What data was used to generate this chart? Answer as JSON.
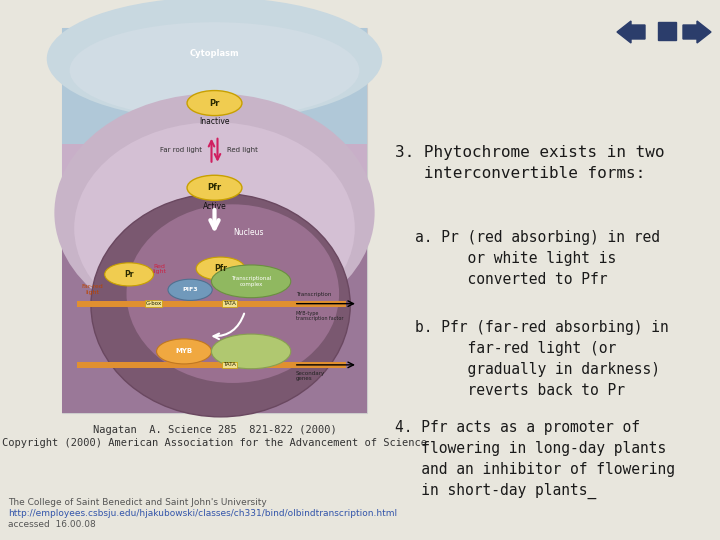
{
  "bg_color": "#e8e6dd",
  "text_color": "#1a1a1a",
  "arrow_nav_color": "#2b3d6b",
  "title_text": "3. Phytochrome exists in two\n   interconvertible forms:",
  "item_a": "a. Pr (red absorbing) in red\n      or white light is\n      converted to Pfr",
  "item_b": "b. Pfr (far-red absorbing) in\n      far-red light (or\n      gradually in darkness)\n      reverts back to Pr",
  "item_4": "4. Pfr acts as a promoter of\n   flowering in long-day plants\n   and an inhibitor of flowering\n   in short-day plants_",
  "footer_line1": "The College of Saint Benedict and Saint John's University",
  "footer_line2": "http://employees.csbsju.edu/hjakubowski/classes/ch331/bind/olbindtranscription.html",
  "footer_line3": "accessed  16.00.08",
  "caption_line1": "Nagatan  A. Science 285  821-822 (2000)",
  "caption_line2": "Copyright (2000) American Association for the Advancement of Science",
  "font_family": "monospace",
  "title_fontsize": 11.5,
  "item_fontsize": 10.5,
  "footer_fontsize": 6.5,
  "caption_fontsize": 7.5
}
